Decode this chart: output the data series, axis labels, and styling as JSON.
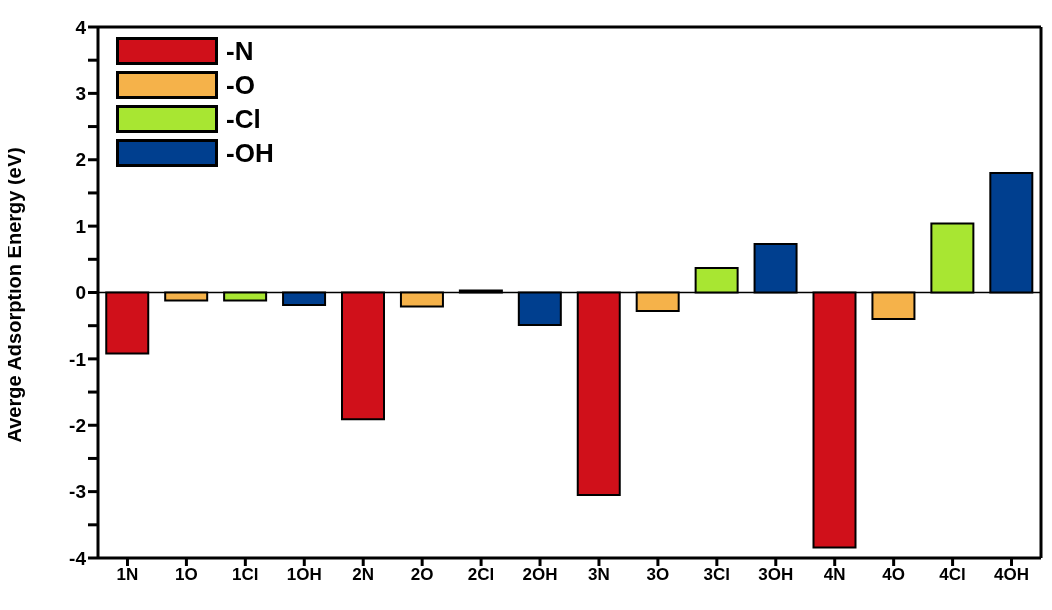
{
  "chart_data": {
    "type": "bar",
    "ylabel": "Averge Adsorption Energy (eV)",
    "categories": [
      "1N",
      "1O",
      "1Cl",
      "1OH",
      "2N",
      "2O",
      "2Cl",
      "2OH",
      "3N",
      "3O",
      "3Cl",
      "3OH",
      "4N",
      "4O",
      "4Cl",
      "4OH"
    ],
    "stacked": true,
    "series": [
      {
        "name": "-N",
        "color": "#d0101a",
        "values": [
          -0.92,
          null,
          null,
          null,
          -1.91,
          null,
          null,
          null,
          -3.05,
          null,
          null,
          null,
          -3.84,
          null,
          null,
          null
        ]
      },
      {
        "name": "-O",
        "color": "#f5b24a",
        "values": [
          null,
          -0.12,
          null,
          null,
          null,
          -0.21,
          null,
          null,
          null,
          -0.28,
          null,
          null,
          null,
          -0.4,
          null,
          null
        ]
      },
      {
        "name": "-Cl",
        "color": "#a8e632",
        "values": [
          null,
          null,
          -0.12,
          null,
          null,
          null,
          0.03,
          null,
          null,
          null,
          0.37,
          null,
          null,
          null,
          1.04,
          null
        ]
      },
      {
        "name": "-OH",
        "color": "#003f8f",
        "values": [
          null,
          null,
          null,
          -0.19,
          null,
          null,
          null,
          -0.49,
          null,
          null,
          null,
          0.73,
          null,
          null,
          null,
          1.8
        ]
      }
    ],
    "ylim": [
      -4,
      4
    ],
    "yticks": [
      -4,
      {
        "value": -3.5,
        "label": null
      },
      -3,
      {
        "value": -2.5,
        "label": null
      },
      -2,
      {
        "value": -1.5,
        "label": null
      },
      -1,
      {
        "value": -0.5,
        "label": null
      },
      0,
      {
        "value": 0.5,
        "label": null
      },
      1,
      {
        "value": 1.5,
        "label": null
      },
      2,
      {
        "value": 2.5,
        "label": null
      },
      3,
      {
        "value": 3.5,
        "label": null
      },
      4
    ],
    "ref_lines": [
      {
        "axis": "y",
        "value": 0,
        "color": "#000000"
      }
    ],
    "grid": false,
    "legend": "top left"
  }
}
